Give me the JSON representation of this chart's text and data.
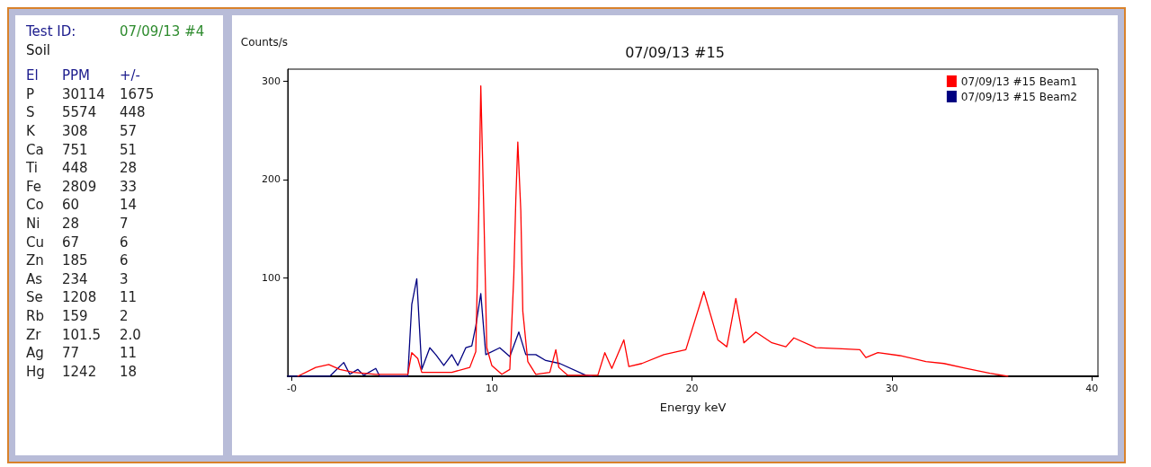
{
  "chart_data": [
    {
      "type": "other",
      "title": "Test ID:",
      "subtitle": "07/09/13 #4",
      "annotations": [
        "Soil",
        "El",
        "PPM",
        "+/-",
        "P",
        "30114",
        "1675",
        "S",
        "5574",
        "448",
        "K",
        "308",
        "57",
        "Ca",
        "751",
        "51",
        "Ti",
        "448",
        "28",
        "Fe",
        "2809",
        "33",
        "Co",
        "60",
        "14",
        "Ni",
        "28",
        "7",
        "Cu",
        "67",
        "6",
        "Zn",
        "185",
        "6",
        "As",
        "234",
        "3",
        "Se",
        "1208",
        "11",
        "Rb",
        "159",
        "2",
        "Zr",
        "101.5",
        "2.0",
        "Ag",
        "77",
        "11",
        "Hg",
        "1242",
        "18"
      ]
    },
    {
      "type": "line",
      "title": "07/09/13 #15",
      "xlabel": "Energy keV",
      "ylabel": "Counts/s",
      "xlim": [
        -0.2,
        40.3
      ],
      "xticks": [
        {
          "value": 0,
          "label": "-0"
        },
        10,
        20,
        30,
        40
      ],
      "ylim": [
        0,
        312
      ],
      "yticks": [
        100,
        200,
        300
      ],
      "grid": false,
      "legend": "top right",
      "marker": "none",
      "line_style": "solid",
      "series": [
        {
          "name": "07/09/13 #15 Beam1",
          "color": "#ff0000",
          "x": [
            0.3,
            1.2,
            1.85,
            2.4,
            3.1,
            4.2,
            5.8,
            6.0,
            6.3,
            6.5,
            8.0,
            8.9,
            9.2,
            9.35,
            9.45,
            9.6,
            9.75,
            10.0,
            10.5,
            10.9,
            11.1,
            11.2,
            11.3,
            11.45,
            11.55,
            11.8,
            12.2,
            12.9,
            13.2,
            13.35,
            13.8,
            15.3,
            15.65,
            16.0,
            16.6,
            16.85,
            17.5,
            18.6,
            19.7,
            20.6,
            21.3,
            21.75,
            22.2,
            22.6,
            23.2,
            24.0,
            24.7,
            25.1,
            26.2,
            27.5,
            28.4,
            28.7,
            29.3,
            30.4,
            31.7,
            32.6,
            33.7,
            34.9,
            35.8
          ],
          "values": [
            0,
            9,
            12,
            7,
            4,
            2,
            2,
            24,
            18,
            4,
            4,
            9,
            25,
            168,
            295,
            168,
            29,
            11,
            2,
            7,
            102,
            179,
            238,
            168,
            66,
            15,
            2,
            4,
            27,
            9,
            1,
            1,
            24,
            8,
            37,
            10,
            13,
            22,
            27,
            86,
            37,
            30,
            79,
            34,
            45,
            34,
            30,
            39,
            29,
            28,
            27,
            19,
            24,
            21,
            15,
            13,
            8,
            3,
            0
          ]
        },
        {
          "name": "07/09/13 #15 Beam2",
          "color": "#000080",
          "x": [
            -0.2,
            1.9,
            2.6,
            2.9,
            3.3,
            3.6,
            4.2,
            4.4,
            5.8,
            6.0,
            6.25,
            6.5,
            6.9,
            7.2,
            7.6,
            8.0,
            8.3,
            8.7,
            9.0,
            9.2,
            9.45,
            9.7,
            10.4,
            10.9,
            11.35,
            11.7,
            12.2,
            12.7,
            13.4,
            14.7,
            15.0
          ],
          "values": [
            0,
            0,
            14,
            2,
            7,
            1,
            8,
            0,
            0,
            73,
            99,
            7,
            29,
            22,
            11,
            22,
            11,
            29,
            31,
            51,
            84,
            22,
            29,
            20,
            45,
            22,
            22,
            16,
            13,
            1,
            0
          ]
        }
      ]
    }
  ]
}
